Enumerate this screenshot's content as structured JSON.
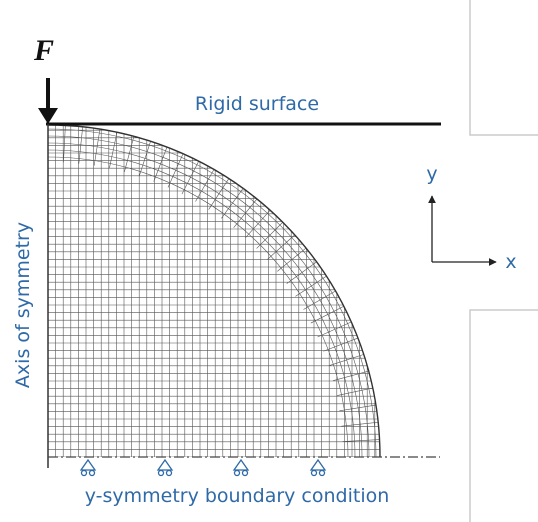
{
  "force_label": "F",
  "rigid_surface": "Rigid surface",
  "axis_y": "y",
  "axis_x": "x",
  "symmetry_axis": "Axis of symmetry",
  "boundary_condition": "y-symmetry boundary condition"
}
